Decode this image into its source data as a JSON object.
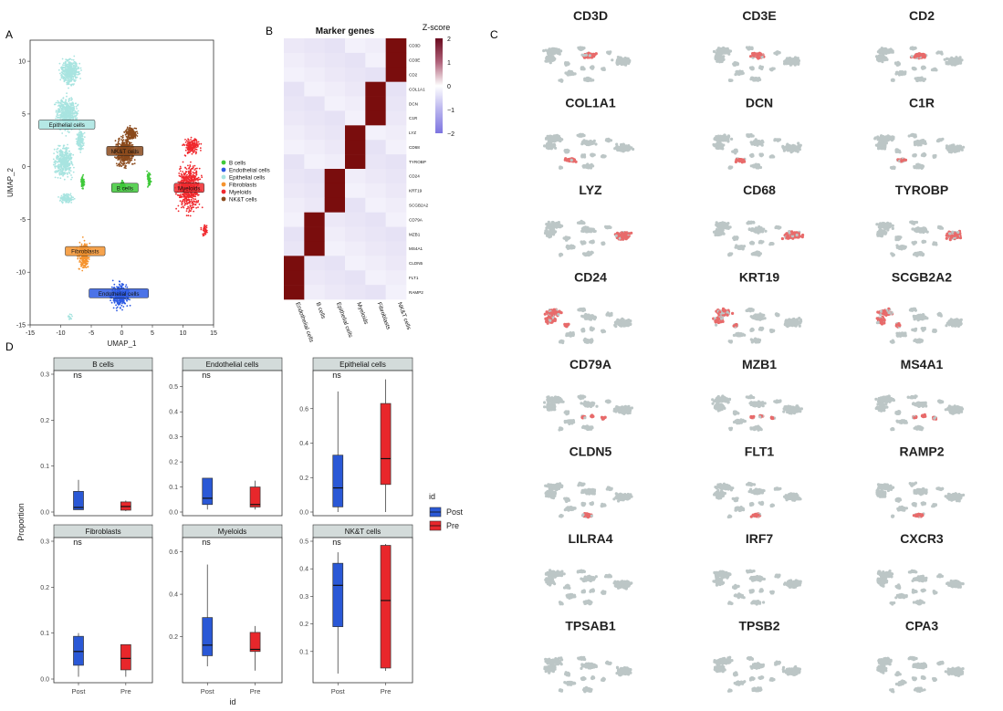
{
  "panel_letters": {
    "a": "A",
    "b": "B",
    "c": "C",
    "d": "D"
  },
  "colors": {
    "b_cells": "#3fc93a",
    "endothelial": "#2d5be3",
    "epithelial": "#a8e4e0",
    "fibroblasts": "#f5932e",
    "myeloids": "#f0282d",
    "nkt": "#8b4a1c",
    "heat_high": "#7a0d0d",
    "heat_low": "#ece8f7",
    "box_post": "#2a58d6",
    "box_pre": "#e8272b",
    "strip": "#d3dbda",
    "feature_gray": "#bcc6c6",
    "feature_red": "#e86a6a"
  },
  "chart_data": [
    {
      "type": "scatter",
      "panel": "A",
      "xlabel": "UMAP_1",
      "ylabel": "UMAP_2",
      "xlim": [
        -15,
        15
      ],
      "ylim": [
        -15,
        12
      ],
      "xticks": [
        -15,
        -10,
        -5,
        0,
        5,
        10,
        15
      ],
      "yticks": [
        -15,
        -10,
        -5,
        0,
        5,
        10
      ],
      "legend": {
        "position": "right",
        "entries": [
          "B cells",
          "Endothelial cells",
          "Epithelial cells",
          "Fibroblasts",
          "Myeloids",
          "NK&T cells"
        ]
      },
      "clusters": [
        {
          "name": "Epithelial cells",
          "label": "Epithelial cells",
          "center": [
            -9,
            4
          ],
          "color_key": "epithelial"
        },
        {
          "name": "NK&T cells",
          "label": "NK&T cells",
          "center": [
            0.5,
            1.5
          ],
          "color_key": "nkt"
        },
        {
          "name": "B cells",
          "label": "B cells",
          "center": [
            0.5,
            -2
          ],
          "color_key": "b_cells"
        },
        {
          "name": "Myeloids",
          "label": "Myeloids",
          "center": [
            11,
            -2
          ],
          "color_key": "myeloids"
        },
        {
          "name": "Fibroblasts",
          "label": "Fibroblasts",
          "center": [
            -6,
            -8
          ],
          "color_key": "fibroblasts"
        },
        {
          "name": "Endothelial cells",
          "label": "Endothelial cells",
          "center": [
            -0.5,
            -12
          ],
          "color_key": "endothelial"
        }
      ]
    },
    {
      "type": "heatmap",
      "panel": "B",
      "title": "Marker genes",
      "legend_title": "Z-score",
      "legend_ticks": [
        "2",
        "1",
        "0",
        "−1",
        "−2"
      ],
      "columns": [
        "Endothelial cells",
        "B cells",
        "Epithelial cells",
        "Myeloids",
        "Fibroblasts",
        "NK&T cells"
      ],
      "rows": [
        "CD3D",
        "CD3E",
        "CD2",
        "COL1A1",
        "DCN",
        "C1R",
        "LYZ",
        "CD68",
        "TYROBP",
        "CD24",
        "KRT19",
        "SCGB2A2",
        "CD79A",
        "MZB1",
        "MS4A1",
        "CLDN5",
        "FLT1",
        "RAMP2"
      ],
      "high_column_per_row": [
        5,
        5,
        5,
        4,
        4,
        4,
        3,
        3,
        3,
        2,
        2,
        2,
        1,
        1,
        1,
        0,
        0,
        0
      ]
    },
    {
      "type": "scatter",
      "panel": "C",
      "genes": [
        "CD3D",
        "CD3E",
        "CD2",
        "COL1A1",
        "DCN",
        "C1R",
        "LYZ",
        "CD68",
        "TYROBP",
        "CD24",
        "KRT19",
        "SCGB2A2",
        "CD79A",
        "MZB1",
        "MS4A1",
        "CLDN5",
        "FLT1",
        "RAMP2",
        "LILRA4",
        "IRF7",
        "CXCR3",
        "TPSAB1",
        "TPSB2",
        "CPA3"
      ],
      "highlight_cluster_per_gene": [
        "nkt",
        "nkt",
        "nkt",
        "fibro",
        "fibro",
        "fibro",
        "myeloid",
        "myeloid",
        "myeloid",
        "epi",
        "epi",
        "epi",
        "bcell",
        "bcell",
        "bcell",
        "endo",
        "endo",
        "endo",
        "none",
        "none",
        "none",
        "none",
        "none",
        "none"
      ]
    },
    {
      "type": "boxplot",
      "panel": "D",
      "xlabel": "id",
      "ylabel": "Proportion",
      "categories": [
        "Post",
        "Pre"
      ],
      "legend": {
        "title": "id",
        "position": "right",
        "entries": [
          "Post",
          "Pre"
        ]
      },
      "facets": [
        {
          "name": "B cells",
          "annotation": "ns",
          "ylim": [
            0,
            0.3
          ],
          "yticks": [
            "0.0",
            "0.1",
            "0.2",
            "0.3"
          ],
          "boxes": [
            {
              "group": "Post",
              "min": 0.005,
              "q1": 0.005,
              "median": 0.01,
              "q3": 0.045,
              "max": 0.07
            },
            {
              "group": "Pre",
              "min": 0.002,
              "q1": 0.004,
              "median": 0.012,
              "q3": 0.022,
              "max": 0.025
            }
          ]
        },
        {
          "name": "Endothelial cells",
          "annotation": "ns",
          "ylim": [
            0,
            0.55
          ],
          "yticks": [
            "0.0",
            "0.1",
            "0.2",
            "0.3",
            "0.4",
            "0.5"
          ],
          "boxes": [
            {
              "group": "Post",
              "min": 0.01,
              "q1": 0.03,
              "median": 0.055,
              "q3": 0.135,
              "max": 0.135
            },
            {
              "group": "Pre",
              "min": 0.01,
              "q1": 0.02,
              "median": 0.03,
              "q3": 0.1,
              "max": 0.125
            }
          ]
        },
        {
          "name": "Epithelial cells",
          "annotation": "ns",
          "ylim": [
            0,
            0.8
          ],
          "yticks": [
            "0.0",
            "0.2",
            "0.4",
            "0.6"
          ],
          "boxes": [
            {
              "group": "Post",
              "min": 0.0,
              "q1": 0.03,
              "median": 0.14,
              "q3": 0.33,
              "max": 0.7
            },
            {
              "group": "Pre",
              "min": 0.0,
              "q1": 0.16,
              "median": 0.31,
              "q3": 0.63,
              "max": 0.77
            }
          ]
        },
        {
          "name": "Fibroblasts",
          "annotation": "ns",
          "ylim": [
            0,
            0.3
          ],
          "yticks": [
            "0.0",
            "0.1",
            "0.2",
            "0.3"
          ],
          "boxes": [
            {
              "group": "Post",
              "min": 0.005,
              "q1": 0.03,
              "median": 0.06,
              "q3": 0.093,
              "max": 0.1
            },
            {
              "group": "Pre",
              "min": 0.005,
              "q1": 0.02,
              "median": 0.045,
              "q3": 0.075,
              "max": 0.075
            }
          ]
        },
        {
          "name": "Myeloids",
          "annotation": "ns",
          "ylim": [
            0,
            0.65
          ],
          "yticks": [
            "0.2",
            "0.4",
            "0.6"
          ],
          "boxes": [
            {
              "group": "Post",
              "min": 0.06,
              "q1": 0.11,
              "median": 0.16,
              "q3": 0.29,
              "max": 0.54
            },
            {
              "group": "Pre",
              "min": 0.04,
              "q1": 0.13,
              "median": 0.14,
              "q3": 0.22,
              "max": 0.25
            }
          ]
        },
        {
          "name": "NK&T cells",
          "annotation": "ns",
          "ylim": [
            0,
            0.5
          ],
          "yticks": [
            "0.1",
            "0.2",
            "0.3",
            "0.4",
            "0.5"
          ],
          "boxes": [
            {
              "group": "Post",
              "min": 0.02,
              "q1": 0.19,
              "median": 0.34,
              "q3": 0.42,
              "max": 0.46
            },
            {
              "group": "Pre",
              "min": 0.03,
              "q1": 0.04,
              "median": 0.285,
              "q3": 0.485,
              "max": 0.49
            }
          ]
        }
      ]
    }
  ]
}
